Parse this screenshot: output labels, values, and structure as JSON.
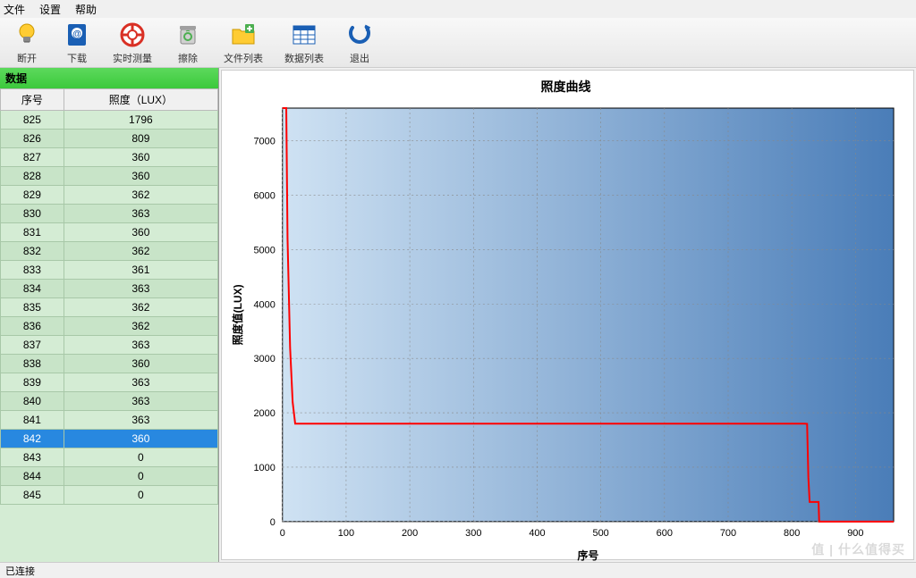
{
  "menu": {
    "file": "文件",
    "settings": "设置",
    "help": "帮助"
  },
  "toolbar": {
    "disconnect": "断开",
    "download": "下载",
    "realtime": "实时测量",
    "clear": "擦除",
    "filelist": "文件列表",
    "datalist": "数据列表",
    "exit": "退出"
  },
  "panel": {
    "header": "数据"
  },
  "table": {
    "col_seq": "序号",
    "col_lux": "照度（LUX）",
    "rows": [
      {
        "seq": "825",
        "lux": "1796"
      },
      {
        "seq": "826",
        "lux": "809"
      },
      {
        "seq": "827",
        "lux": "360"
      },
      {
        "seq": "828",
        "lux": "360"
      },
      {
        "seq": "829",
        "lux": "362"
      },
      {
        "seq": "830",
        "lux": "363"
      },
      {
        "seq": "831",
        "lux": "360"
      },
      {
        "seq": "832",
        "lux": "362"
      },
      {
        "seq": "833",
        "lux": "361"
      },
      {
        "seq": "834",
        "lux": "363"
      },
      {
        "seq": "835",
        "lux": "362"
      },
      {
        "seq": "836",
        "lux": "362"
      },
      {
        "seq": "837",
        "lux": "363"
      },
      {
        "seq": "838",
        "lux": "360"
      },
      {
        "seq": "839",
        "lux": "363"
      },
      {
        "seq": "840",
        "lux": "363"
      },
      {
        "seq": "841",
        "lux": "363"
      },
      {
        "seq": "842",
        "lux": "360",
        "selected": true
      },
      {
        "seq": "843",
        "lux": "0"
      },
      {
        "seq": "844",
        "lux": "0"
      },
      {
        "seq": "845",
        "lux": "0"
      }
    ]
  },
  "chart": {
    "title": "照度曲线",
    "xlabel": "序号",
    "ylabel": "照度值(LUX)",
    "xlim": [
      0,
      960
    ],
    "ylim": [
      0,
      7600
    ],
    "xticks": [
      0,
      100,
      200,
      300,
      400,
      500,
      600,
      700,
      800,
      900
    ],
    "yticks": [
      0,
      1000,
      2000,
      3000,
      4000,
      5000,
      6000,
      7000
    ],
    "grid_color": "#888888",
    "grid_dash": "2,3",
    "line_color": "#ff0000",
    "line_width": 2,
    "bg_gradient_from": "#cfe2f3",
    "bg_gradient_to": "#4a7db8",
    "axis_color": "#000000",
    "tick_font_size": 11,
    "label_font_size": 12,
    "points": [
      {
        "x": 0,
        "y": 7600
      },
      {
        "x": 6,
        "y": 7600
      },
      {
        "x": 8,
        "y": 5200
      },
      {
        "x": 12,
        "y": 3200
      },
      {
        "x": 16,
        "y": 2200
      },
      {
        "x": 20,
        "y": 1800
      },
      {
        "x": 820,
        "y": 1800
      },
      {
        "x": 824,
        "y": 1796
      },
      {
        "x": 826,
        "y": 809
      },
      {
        "x": 828,
        "y": 360
      },
      {
        "x": 842,
        "y": 360
      },
      {
        "x": 843,
        "y": 0
      },
      {
        "x": 960,
        "y": 0
      }
    ]
  },
  "status": {
    "text": "已连接"
  },
  "watermark": "值 | 什么值得买"
}
